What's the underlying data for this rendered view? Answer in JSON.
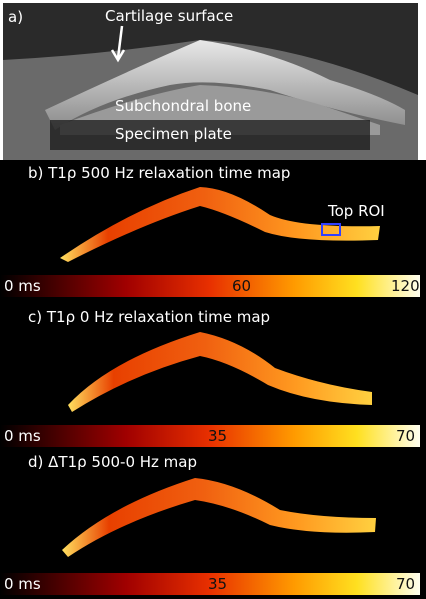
{
  "panels": [
    {
      "label": "a)",
      "annotations": [
        "Cartilage surface",
        "Subchondral bone",
        "Specimen plate"
      ]
    },
    {
      "title": "b) T1ρ 500 Hz relaxation time map",
      "roi_label": "Top ROI",
      "colorbar_labels": [
        "0 ms",
        "60",
        "120"
      ]
    },
    {
      "title": "c) T1ρ 0 Hz relaxation time map",
      "colorbar_labels": [
        "0 ms",
        "35",
        "70"
      ]
    },
    {
      "title": "d) ΔT1ρ 500-0 Hz map",
      "colorbar_labels": [
        "0 ms",
        "35",
        "70"
      ]
    }
  ]
}
